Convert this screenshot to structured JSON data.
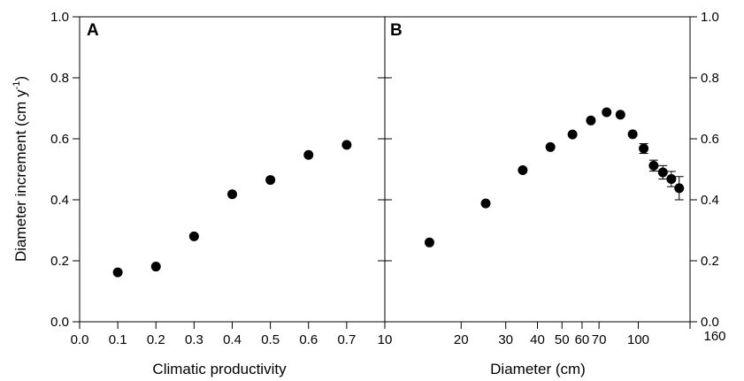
{
  "chart_data": [
    {
      "type": "scatter",
      "panel_label": "A",
      "xlabel": "Climatic productivity",
      "ylabel": "Diameter increment (cm y",
      "ylabel_superscript": "-1",
      "ylabel_suffix": ")",
      "xlim": [
        0.0,
        0.8
      ],
      "ylim": [
        0.0,
        1.0
      ],
      "x_ticks": [
        "0.0",
        "0.1",
        "0.2",
        "0.3",
        "0.4",
        "0.5",
        "0.6",
        "0.7"
      ],
      "x_tick_values": [
        0.0,
        0.1,
        0.2,
        0.3,
        0.4,
        0.5,
        0.6,
        0.7
      ],
      "y_ticks": [
        "0.0",
        "0.2",
        "0.4",
        "0.6",
        "0.8",
        "1.0"
      ],
      "y_tick_values": [
        0.0,
        0.2,
        0.4,
        0.6,
        0.8,
        1.0
      ],
      "grid": false,
      "points": [
        {
          "x": 0.1,
          "y": 0.162
        },
        {
          "x": 0.2,
          "y": 0.181
        },
        {
          "x": 0.3,
          "y": 0.28
        },
        {
          "x": 0.4,
          "y": 0.418
        },
        {
          "x": 0.5,
          "y": 0.465
        },
        {
          "x": 0.6,
          "y": 0.547
        },
        {
          "x": 0.7,
          "y": 0.58
        }
      ]
    },
    {
      "type": "scatter",
      "panel_label": "B",
      "xlabel": "Diameter (cm)",
      "x_scale": "log",
      "xlim": [
        10,
        160
      ],
      "ylim": [
        0.0,
        1.0
      ],
      "x_ticks": [
        "10",
        "20",
        "30",
        "40",
        "50",
        "60",
        "70",
        "100",
        "160"
      ],
      "x_tick_values": [
        10,
        20,
        30,
        40,
        50,
        60,
        70,
        100,
        160
      ],
      "y_ticks": [
        "0.0",
        "0.2",
        "0.4",
        "0.6",
        "0.8",
        "1.0"
      ],
      "y_tick_values": [
        0.0,
        0.2,
        0.4,
        0.6,
        0.8,
        1.0
      ],
      "y_axis_side": "right",
      "grid": false,
      "error_bars": true,
      "points": [
        {
          "x": 15,
          "y": 0.26,
          "err": 0.0
        },
        {
          "x": 25,
          "y": 0.388,
          "err": 0.0
        },
        {
          "x": 35,
          "y": 0.497,
          "err": 0.0
        },
        {
          "x": 45,
          "y": 0.573,
          "err": 0.0
        },
        {
          "x": 55,
          "y": 0.614,
          "err": 0.0
        },
        {
          "x": 65,
          "y": 0.66,
          "err": 0.0
        },
        {
          "x": 75,
          "y": 0.687,
          "err": 0.0
        },
        {
          "x": 85,
          "y": 0.679,
          "err": 0.0
        },
        {
          "x": 95,
          "y": 0.615,
          "err": 0.006
        },
        {
          "x": 105,
          "y": 0.568,
          "err": 0.016
        },
        {
          "x": 115,
          "y": 0.512,
          "err": 0.018
        },
        {
          "x": 125,
          "y": 0.49,
          "err": 0.022
        },
        {
          "x": 135,
          "y": 0.468,
          "err": 0.025
        },
        {
          "x": 145,
          "y": 0.438,
          "err": 0.038
        }
      ]
    }
  ]
}
